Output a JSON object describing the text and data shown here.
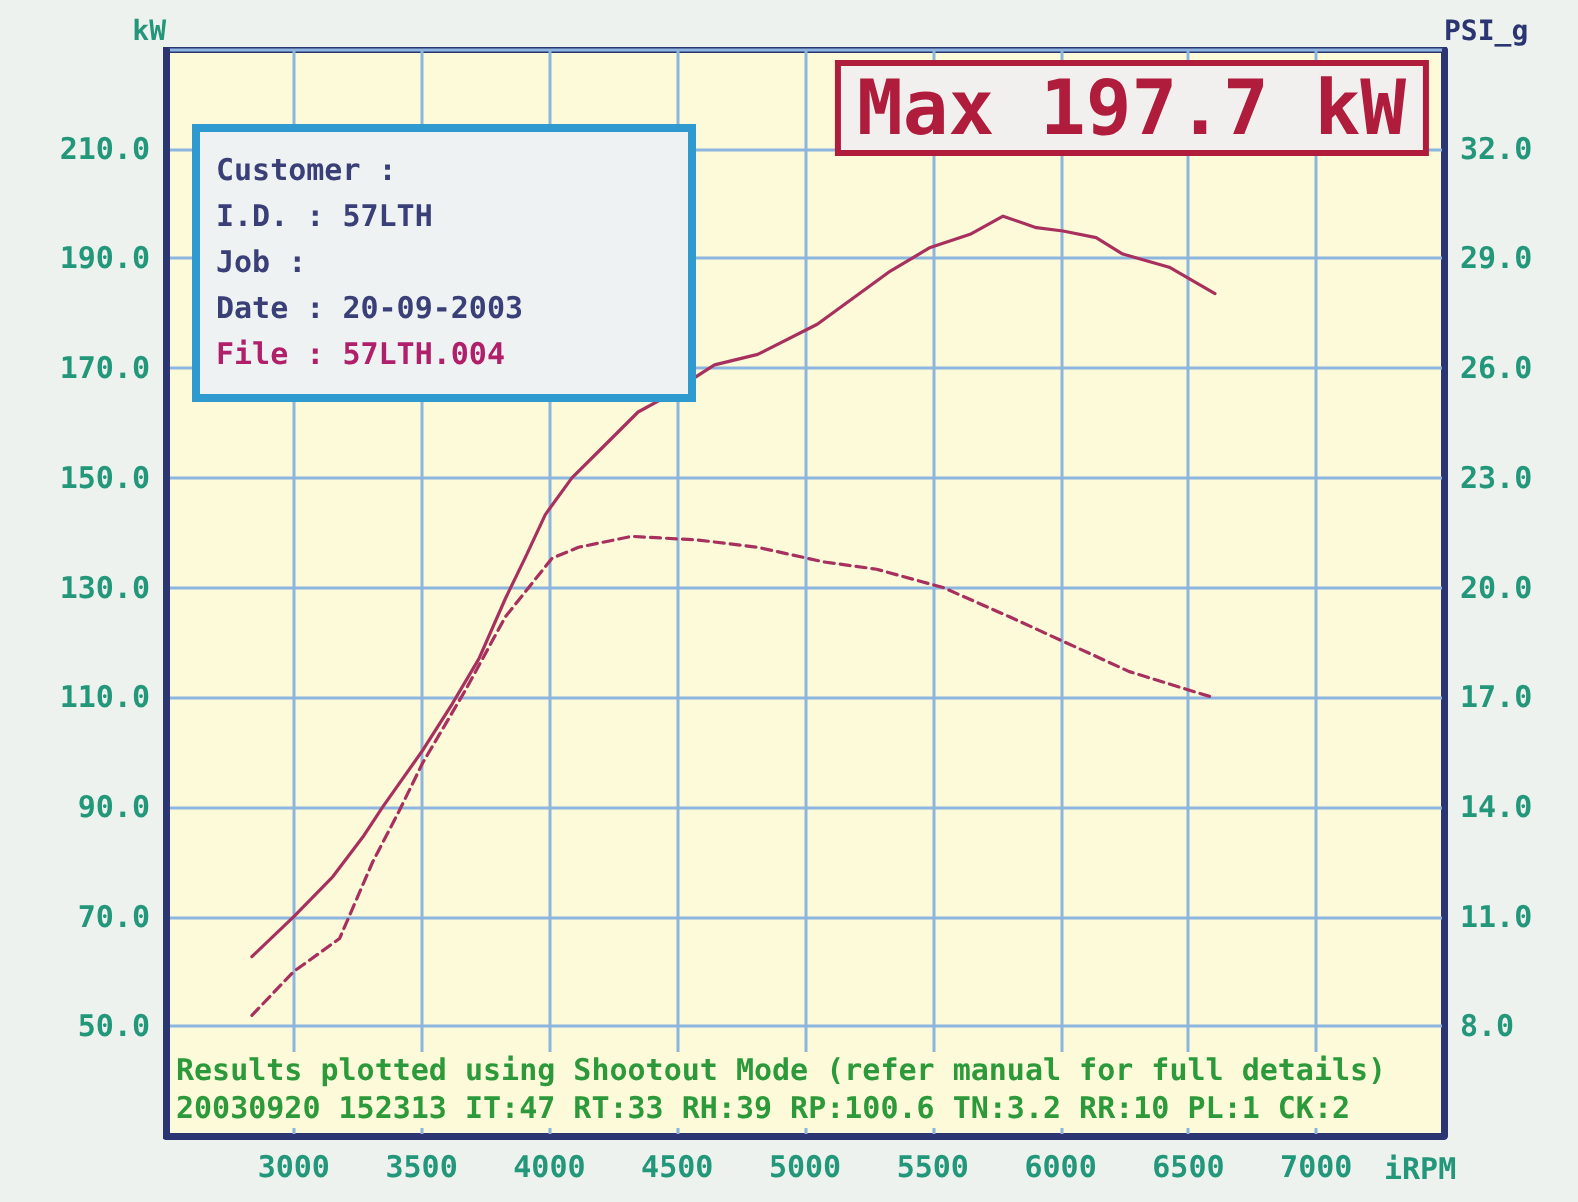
{
  "chart_data": {
    "type": "line",
    "title": "Max 197.7 kW",
    "xlabel": "iRPM",
    "ylabel": "kW",
    "y2label": "PSI_g",
    "annotations": [
      "Customer :",
      "I.D. : 57LTH",
      "Job :",
      "Date : 20-09-2003",
      "File : 57LTH.004",
      "Results plotted using Shootout Mode (refer manual for full details)",
      "20030920 152313 IT:47 RT:33 RH:39 RP:100.6 TN:3.2 RR:10 PL:1 CK:2"
    ],
    "series": [
      {
        "color": "#a8305e",
        "line_style": "solid",
        "x": [
          2836,
          3000,
          3153,
          3270,
          3348,
          3504,
          3620,
          3724,
          3828,
          3906,
          3984,
          4088,
          4192,
          4347,
          4425,
          4646,
          4815,
          5048,
          5334,
          5490,
          5646,
          5775,
          5905,
          6009,
          6139,
          6243,
          6425,
          6604
        ],
        "values": [
          62.7,
          70,
          77.3,
          84.5,
          90,
          100.3,
          108.8,
          117,
          128,
          135.5,
          143.3,
          150,
          154.8,
          162,
          164,
          170.6,
          172.5,
          178,
          187.7,
          192,
          194.4,
          197.7,
          195.6,
          195,
          193.8,
          190.8,
          188.4,
          183.6
        ]
      },
      {
        "color": "#a8305e",
        "line_style": "dashed",
        "axis": "y2",
        "x": [
          2836,
          3000,
          3179,
          3309,
          3413,
          3504,
          3672,
          3828,
          4010,
          4114,
          4322,
          4581,
          4815,
          5074,
          5280,
          5540,
          5800,
          5956,
          6269,
          6593
        ],
        "values": [
          8.3,
          9.5,
          10.4,
          12.5,
          13.9,
          15.2,
          17.2,
          19.2,
          20.8,
          21.1,
          21.4,
          21.3,
          21.1,
          20.7,
          20.5,
          20.0,
          19.2,
          18.7,
          17.7,
          17.0
        ]
      }
    ],
    "xlim": [
      2500,
      7500
    ],
    "xticks": [
      3000,
      3500,
      4000,
      4500,
      5000,
      5500,
      6000,
      6500,
      7000
    ],
    "ylim": [
      30,
      228
    ],
    "yticks": [
      {
        "value": 50,
        "label": "50.0"
      },
      {
        "value": 70,
        "label": "70.0"
      },
      {
        "value": 90,
        "label": "90.0"
      },
      {
        "value": 110,
        "label": "110.0"
      },
      {
        "value": 130,
        "label": "130.0"
      },
      {
        "value": 150,
        "label": "150.0"
      },
      {
        "value": 170,
        "label": "170.0"
      },
      {
        "value": 190,
        "label": "190.0"
      },
      {
        "value": 210,
        "label": "210.0"
      }
    ],
    "y2lim": [
      5,
      34.7
    ],
    "y2ticks": [
      {
        "value": 8,
        "label": "8.0"
      },
      {
        "value": 11,
        "label": "11.0"
      },
      {
        "value": 14,
        "label": "14.0"
      },
      {
        "value": 17,
        "label": "17.0"
      },
      {
        "value": 20,
        "label": "20.0"
      },
      {
        "value": 23,
        "label": "23.0"
      },
      {
        "value": 26,
        "label": "26.0"
      },
      {
        "value": 29,
        "label": "29.0"
      },
      {
        "value": 32,
        "label": "32.0"
      }
    ],
    "grid": true,
    "marker": "none"
  }
}
